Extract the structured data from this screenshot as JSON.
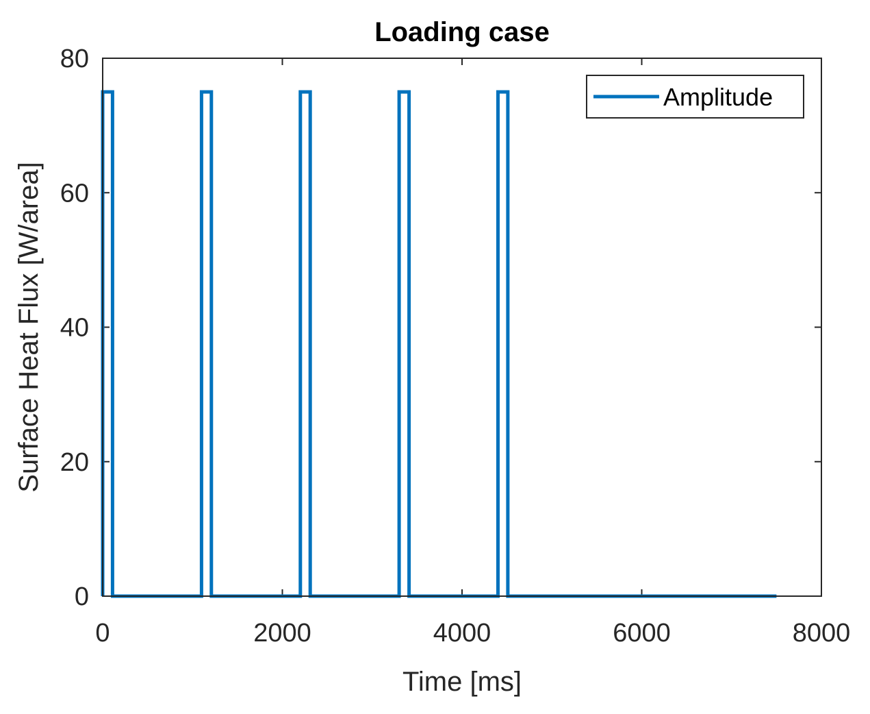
{
  "chart_data": {
    "type": "line",
    "title": "Loading case",
    "xlabel": "Time [ms]",
    "ylabel": "Surface Heat Flux [W/area]",
    "xlim": [
      0,
      8000
    ],
    "ylim": [
      0,
      80
    ],
    "xticks": [
      0,
      2000,
      4000,
      6000,
      8000
    ],
    "yticks": [
      0,
      20,
      40,
      60,
      80
    ],
    "grid": false,
    "legend": {
      "position": "top-right",
      "entries": [
        "Amplitude"
      ]
    },
    "series": [
      {
        "name": "Amplitude",
        "color": "#0072BD",
        "x": [
          0,
          0,
          110,
          110,
          1100,
          1100,
          1210,
          1210,
          2200,
          2200,
          2310,
          2310,
          3300,
          3300,
          3410,
          3410,
          4400,
          4400,
          4510,
          4510,
          7500
        ],
        "y": [
          0,
          75,
          75,
          0,
          0,
          75,
          75,
          0,
          0,
          75,
          75,
          0,
          0,
          75,
          75,
          0,
          0,
          75,
          75,
          0,
          0
        ]
      }
    ]
  }
}
